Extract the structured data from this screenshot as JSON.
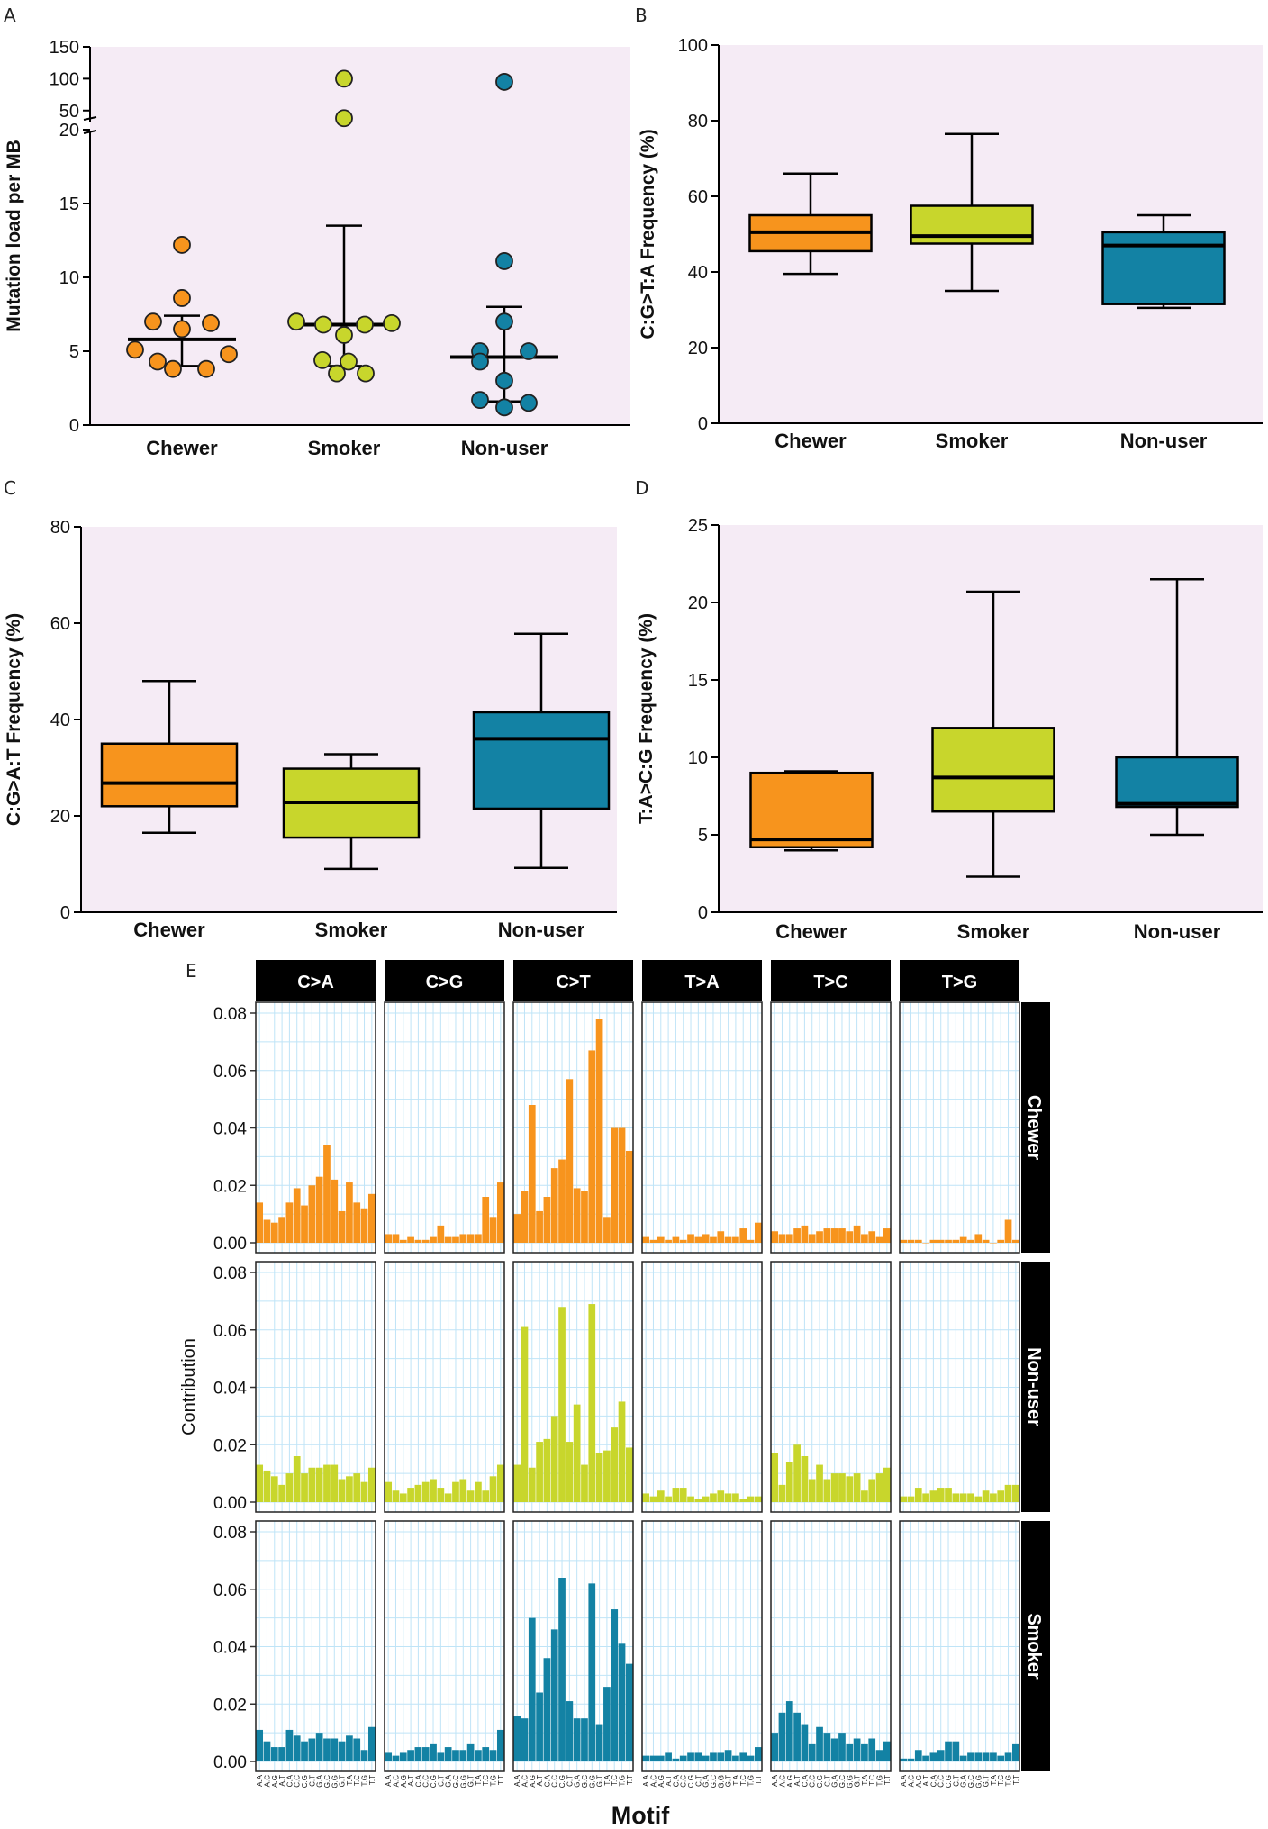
{
  "colors": {
    "chewer": "#F7941D",
    "smoker": "#C8D62C",
    "nonuser": "#1382A4",
    "panel_bg": "#F5EBF5",
    "grid": "#BFE4F7",
    "strip": "#000000"
  },
  "chart_data": [
    {
      "id": "A",
      "type": "scatter",
      "panel_label": "A",
      "ylabel": "Mutation load per MB",
      "xlabel": "",
      "y_lower_ticks": [
        0,
        5,
        10,
        15,
        20
      ],
      "y_upper_ticks": [
        50,
        100,
        150
      ],
      "ylim_lower": [
        0,
        20
      ],
      "ylim_upper": [
        20,
        150
      ],
      "axis_break": true,
      "categories": [
        "Chewer",
        "Smoker",
        "Non-user"
      ],
      "series": [
        {
          "name": "Chewer",
          "color": "#F7941D",
          "median": 5.8,
          "q1": 4.0,
          "q3": 7.4,
          "points": [
            12.2,
            8.6,
            7.0,
            6.9,
            6.5,
            5.1,
            4.8,
            4.3,
            3.8,
            3.8
          ]
        },
        {
          "name": "Smoker",
          "color": "#C8D62C",
          "median": 6.8,
          "q1": 4.0,
          "q3": 13.5,
          "points": [
            100,
            38,
            7.0,
            6.9,
            6.8,
            6.8,
            6.1,
            4.4,
            4.3,
            3.5,
            3.5
          ]
        },
        {
          "name": "Non-user",
          "color": "#1382A4",
          "median": 4.6,
          "q1": 1.6,
          "q3": 8.0,
          "points": [
            95,
            11.1,
            7.0,
            5.0,
            5.0,
            4.3,
            3.0,
            1.7,
            1.5,
            1.2
          ]
        }
      ]
    },
    {
      "id": "B",
      "type": "box",
      "panel_label": "B",
      "ylabel": "C:G>T:A Frequency (%)",
      "ylim": [
        0,
        100
      ],
      "yticks": [
        0,
        20,
        40,
        60,
        80,
        100
      ],
      "categories": [
        "Chewer",
        "Smoker",
        "Non-user"
      ],
      "series": [
        {
          "name": "Chewer",
          "min": 39.5,
          "q1": 45.5,
          "median": 50.5,
          "q3": 55.0,
          "max": 66.0
        },
        {
          "name": "Smoker",
          "min": 35.0,
          "q1": 47.5,
          "median": 49.5,
          "q3": 57.5,
          "max": 76.5
        },
        {
          "name": "Non-user",
          "min": 30.5,
          "q1": 31.5,
          "median": 47.0,
          "q3": 50.5,
          "max": 55.0
        }
      ]
    },
    {
      "id": "C",
      "type": "box",
      "panel_label": "C",
      "ylabel": "C:G>A:T Frequency (%)",
      "ylim": [
        0,
        80
      ],
      "yticks": [
        0,
        20,
        40,
        60,
        80
      ],
      "categories": [
        "Chewer",
        "Smoker",
        "Non-user"
      ],
      "series": [
        {
          "name": "Chewer",
          "min": 16.5,
          "q1": 22.0,
          "median": 26.8,
          "q3": 35.0,
          "max": 48.0
        },
        {
          "name": "Smoker",
          "min": 9.0,
          "q1": 15.5,
          "median": 22.8,
          "q3": 29.8,
          "max": 32.8
        },
        {
          "name": "Non-user",
          "min": 9.2,
          "q1": 21.5,
          "median": 36.0,
          "q3": 41.5,
          "max": 57.8
        }
      ]
    },
    {
      "id": "D",
      "type": "box",
      "panel_label": "D",
      "ylabel": "T:A>C:G Frequency (%)",
      "ylim": [
        0,
        25
      ],
      "yticks": [
        0,
        5,
        10,
        15,
        20,
        25
      ],
      "categories": [
        "Chewer",
        "Smoker",
        "Non-user"
      ],
      "series": [
        {
          "name": "Chewer",
          "min": 4.0,
          "q1": 4.2,
          "median": 4.7,
          "q3": 9.0,
          "max": 9.1
        },
        {
          "name": "Smoker",
          "min": 2.3,
          "q1": 6.5,
          "median": 8.7,
          "q3": 11.9,
          "max": 20.7
        },
        {
          "name": "Non-user",
          "min": 5.0,
          "q1": 6.8,
          "median": 7.0,
          "q3": 10.0,
          "max": 21.5
        }
      ]
    },
    {
      "id": "E",
      "type": "bar",
      "panel_label": "E",
      "ylabel": "Contribution",
      "xlabel": "Motif",
      "ylim": [
        0,
        0.08
      ],
      "yticks": [
        0.0,
        0.02,
        0.04,
        0.06,
        0.08
      ],
      "ytick_labels": [
        "0.00",
        "0.02",
        "0.04",
        "0.06",
        "0.08"
      ],
      "substitutions": [
        "C>A",
        "C>G",
        "C>T",
        "T>A",
        "T>C",
        "T>G"
      ],
      "motifs": [
        "A.A",
        "A.C",
        "A.G",
        "A.T",
        "C.A",
        "C.C",
        "C.G",
        "C.T",
        "G.A",
        "G.C",
        "G.G",
        "G.T",
        "T.A",
        "T.C",
        "T.G",
        "T.T"
      ],
      "rows": [
        {
          "name": "Chewer",
          "color": "#F7941D",
          "values": {
            "C>A": [
              0.014,
              0.008,
              0.007,
              0.009,
              0.014,
              0.019,
              0.013,
              0.02,
              0.023,
              0.034,
              0.022,
              0.011,
              0.021,
              0.014,
              0.012,
              0.017
            ],
            "C>G": [
              0.003,
              0.003,
              0.001,
              0.002,
              0.001,
              0.001,
              0.002,
              0.006,
              0.002,
              0.002,
              0.003,
              0.003,
              0.003,
              0.016,
              0.009,
              0.021
            ],
            "C>T": [
              0.01,
              0.018,
              0.048,
              0.011,
              0.016,
              0.026,
              0.029,
              0.057,
              0.019,
              0.018,
              0.067,
              0.078,
              0.009,
              0.04,
              0.04,
              0.032
            ],
            "T>A": [
              0.002,
              0.001,
              0.002,
              0.001,
              0.002,
              0.001,
              0.003,
              0.002,
              0.003,
              0.002,
              0.004,
              0.002,
              0.002,
              0.005,
              0.001,
              0.007
            ],
            "T>C": [
              0.004,
              0.003,
              0.003,
              0.005,
              0.006,
              0.003,
              0.004,
              0.005,
              0.005,
              0.005,
              0.004,
              0.006,
              0.003,
              0.004,
              0.002,
              0.005
            ],
            "T>G": [
              0.001,
              0.001,
              0.001,
              0.0,
              0.001,
              0.001,
              0.001,
              0.001,
              0.002,
              0.001,
              0.003,
              0.001,
              0.0,
              0.001,
              0.008,
              0.001
            ]
          }
        },
        {
          "name": "Non-user",
          "color": "#C8D62C",
          "values": {
            "C>A": [
              0.013,
              0.011,
              0.009,
              0.006,
              0.01,
              0.016,
              0.01,
              0.012,
              0.012,
              0.013,
              0.013,
              0.008,
              0.009,
              0.01,
              0.007,
              0.012
            ],
            "C>G": [
              0.007,
              0.004,
              0.003,
              0.005,
              0.006,
              0.007,
              0.008,
              0.005,
              0.003,
              0.007,
              0.008,
              0.004,
              0.007,
              0.004,
              0.009,
              0.013
            ],
            "C>T": [
              0.013,
              0.061,
              0.012,
              0.021,
              0.022,
              0.03,
              0.068,
              0.021,
              0.034,
              0.013,
              0.069,
              0.017,
              0.018,
              0.026,
              0.035,
              0.019
            ],
            "T>A": [
              0.003,
              0.002,
              0.004,
              0.002,
              0.005,
              0.005,
              0.002,
              0.001,
              0.002,
              0.003,
              0.004,
              0.003,
              0.003,
              0.001,
              0.002,
              0.002
            ],
            "T>C": [
              0.017,
              0.006,
              0.014,
              0.02,
              0.016,
              0.008,
              0.013,
              0.008,
              0.01,
              0.01,
              0.009,
              0.01,
              0.004,
              0.008,
              0.01,
              0.012
            ],
            "T>G": [
              0.002,
              0.002,
              0.005,
              0.003,
              0.004,
              0.005,
              0.005,
              0.003,
              0.003,
              0.003,
              0.002,
              0.004,
              0.003,
              0.004,
              0.006,
              0.006
            ]
          }
        },
        {
          "name": "Smoker",
          "color": "#1382A4",
          "values": {
            "C>A": [
              0.011,
              0.007,
              0.005,
              0.005,
              0.011,
              0.009,
              0.007,
              0.008,
              0.01,
              0.008,
              0.008,
              0.007,
              0.009,
              0.008,
              0.004,
              0.012
            ],
            "C>G": [
              0.003,
              0.002,
              0.003,
              0.004,
              0.005,
              0.005,
              0.006,
              0.003,
              0.005,
              0.004,
              0.004,
              0.006,
              0.004,
              0.005,
              0.004,
              0.011
            ],
            "C>T": [
              0.016,
              0.015,
              0.05,
              0.024,
              0.036,
              0.046,
              0.064,
              0.021,
              0.015,
              0.015,
              0.062,
              0.013,
              0.026,
              0.053,
              0.041,
              0.034
            ],
            "T>A": [
              0.002,
              0.002,
              0.002,
              0.003,
              0.001,
              0.002,
              0.003,
              0.003,
              0.002,
              0.003,
              0.003,
              0.004,
              0.002,
              0.003,
              0.002,
              0.005
            ],
            "T>C": [
              0.01,
              0.017,
              0.021,
              0.017,
              0.013,
              0.006,
              0.012,
              0.01,
              0.008,
              0.01,
              0.006,
              0.008,
              0.006,
              0.008,
              0.004,
              0.007
            ],
            "T>G": [
              0.001,
              0.001,
              0.004,
              0.002,
              0.003,
              0.004,
              0.007,
              0.007,
              0.002,
              0.003,
              0.003,
              0.003,
              0.003,
              0.002,
              0.003,
              0.006
            ]
          }
        }
      ]
    }
  ]
}
